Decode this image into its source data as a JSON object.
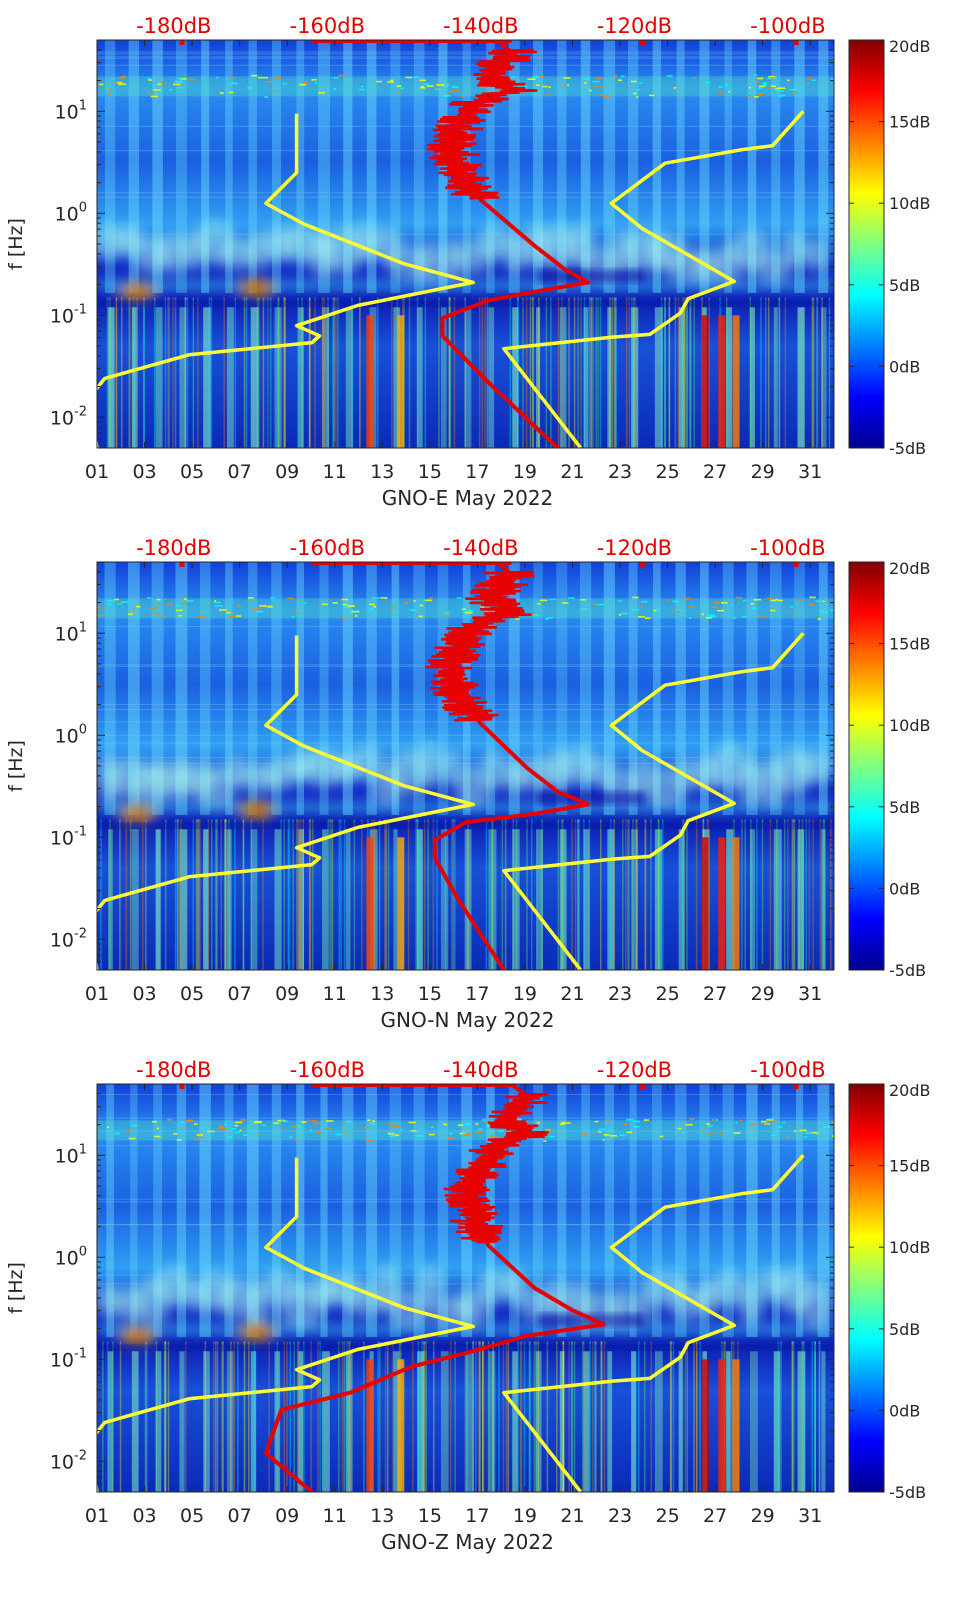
{
  "colors": {
    "spectrogram_low": "#00008f",
    "spectrogram_high": "#800000",
    "noise_model_lines": "#ffff33",
    "psd_median_line": "#e60000",
    "top_axis_text": "#e00000"
  },
  "chart_data": [
    {
      "type": "heatmap",
      "title": "",
      "xlabel": "GNO-E May 2022",
      "ylabel": "f [Hz]",
      "x_tick_labels": [
        "01",
        "03",
        "05",
        "07",
        "09",
        "11",
        "13",
        "15",
        "17",
        "19",
        "21",
        "23",
        "25",
        "27",
        "29",
        "31"
      ],
      "x_range_days": [
        1,
        32
      ],
      "y_scale": "log",
      "y_range_hz": [
        0.005,
        50
      ],
      "y_tick_labels": [
        "10^-2",
        "10^-1",
        "10^0",
        "10^1"
      ],
      "top_tick_labels": [
        "-180dB",
        "-160dB",
        "-140dB",
        "-120dB",
        "-100dB"
      ],
      "top_range_db": [
        -190,
        -94
      ],
      "colorbar": {
        "ticks": [
          "-5dB",
          "0dB",
          "5dB",
          "10dB",
          "15dB",
          "20dB"
        ],
        "range_db": [
          -5,
          20
        ],
        "colormap": "jet"
      },
      "lines": [
        {
          "color": "yellow",
          "points_db_hz": [
            [
              -190,
              0.005
            ],
            [
              -191,
              0.0155
            ],
            [
              -189,
              0.024
            ],
            [
              -178,
              0.041
            ],
            [
              -162,
              0.054
            ],
            [
              -161,
              0.063
            ],
            [
              -164,
              0.079
            ],
            [
              -156,
              0.125
            ],
            [
              -141,
              0.21
            ],
            [
              -150,
              0.32
            ],
            [
              -163,
              0.78
            ],
            [
              -168,
              1.25
            ],
            [
              -164,
              2.5
            ],
            [
              -164,
              9.5
            ]
          ]
        },
        {
          "color": "yellow",
          "points_db_hz": [
            [
              -127,
              0.005
            ],
            [
              -137,
              0.047
            ],
            [
              -123,
              0.061
            ],
            [
              -118,
              0.065
            ],
            [
              -114,
              0.105
            ],
            [
              -113,
              0.145
            ],
            [
              -107,
              0.215
            ],
            [
              -119,
              0.71
            ],
            [
              -123,
              1.25
            ],
            [
              -116,
              3.1
            ],
            [
              -106,
              4.2
            ],
            [
              -102,
              4.6
            ],
            [
              -98,
              10
            ]
          ]
        },
        {
          "color": "red",
          "points_db_hz": [
            [
              -130,
              0.005
            ],
            [
              -139,
              0.022
            ],
            [
              -145,
              0.063
            ],
            [
              -145,
              0.094
            ],
            [
              -139,
              0.14
            ],
            [
              -133,
              0.17
            ],
            [
              -126,
              0.21
            ],
            [
              -129,
              0.28
            ],
            [
              -133,
              0.48
            ],
            [
              -140,
              1.35
            ],
            [
              -143,
              2.6
            ],
            [
              -144,
              5
            ],
            [
              -141,
              12
            ],
            [
              -136,
              16
            ],
            [
              -139,
              22
            ],
            [
              -136,
              38
            ],
            [
              -138,
              50
            ]
          ]
        }
      ]
    },
    {
      "type": "heatmap",
      "title": "",
      "xlabel": "GNO-N May 2022",
      "ylabel": "f [Hz]",
      "x_tick_labels": [
        "01",
        "03",
        "05",
        "07",
        "09",
        "11",
        "13",
        "15",
        "17",
        "19",
        "21",
        "23",
        "25",
        "27",
        "29",
        "31"
      ],
      "x_range_days": [
        1,
        32
      ],
      "y_scale": "log",
      "y_range_hz": [
        0.005,
        50
      ],
      "y_tick_labels": [
        "10^-2",
        "10^-1",
        "10^0",
        "10^1"
      ],
      "top_tick_labels": [
        "-180dB",
        "-160dB",
        "-140dB",
        "-120dB",
        "-100dB"
      ],
      "top_range_db": [
        -190,
        -94
      ],
      "colorbar": {
        "ticks": [
          "-5dB",
          "0dB",
          "5dB",
          "10dB",
          "15dB",
          "20dB"
        ],
        "range_db": [
          -5,
          20
        ],
        "colormap": "jet"
      },
      "lines": [
        {
          "color": "yellow",
          "points_db_hz": [
            [
              -190,
              0.005
            ],
            [
              -191,
              0.0155
            ],
            [
              -189,
              0.024
            ],
            [
              -178,
              0.041
            ],
            [
              -162,
              0.054
            ],
            [
              -161,
              0.063
            ],
            [
              -164,
              0.079
            ],
            [
              -156,
              0.125
            ],
            [
              -141,
              0.21
            ],
            [
              -150,
              0.32
            ],
            [
              -163,
              0.78
            ],
            [
              -168,
              1.25
            ],
            [
              -164,
              2.5
            ],
            [
              -164,
              9.5
            ]
          ]
        },
        {
          "color": "yellow",
          "points_db_hz": [
            [
              -127,
              0.005
            ],
            [
              -137,
              0.047
            ],
            [
              -123,
              0.061
            ],
            [
              -118,
              0.065
            ],
            [
              -114,
              0.105
            ],
            [
              -113,
              0.145
            ],
            [
              -107,
              0.215
            ],
            [
              -119,
              0.71
            ],
            [
              -123,
              1.25
            ],
            [
              -116,
              3.1
            ],
            [
              -106,
              4.2
            ],
            [
              -102,
              4.6
            ],
            [
              -98,
              10
            ]
          ]
        },
        {
          "color": "red",
          "points_db_hz": [
            [
              -137,
              0.005
            ],
            [
              -143,
              0.025
            ],
            [
              -146,
              0.063
            ],
            [
              -146,
              0.094
            ],
            [
              -142,
              0.14
            ],
            [
              -133,
              0.17
            ],
            [
              -126,
              0.21
            ],
            [
              -130,
              0.28
            ],
            [
              -134,
              0.48
            ],
            [
              -140,
              1.3
            ],
            [
              -143,
              2.6
            ],
            [
              -144,
              5
            ],
            [
              -141,
              12
            ],
            [
              -136,
              16
            ],
            [
              -139,
              22
            ],
            [
              -136,
              38
            ],
            [
              -138,
              50
            ]
          ]
        }
      ]
    },
    {
      "type": "heatmap",
      "title": "",
      "xlabel": "GNO-Z May 2022",
      "ylabel": "f [Hz]",
      "x_tick_labels": [
        "01",
        "03",
        "05",
        "07",
        "09",
        "11",
        "13",
        "15",
        "17",
        "19",
        "21",
        "23",
        "25",
        "27",
        "29",
        "31"
      ],
      "x_range_days": [
        1,
        32
      ],
      "y_scale": "log",
      "y_range_hz": [
        0.005,
        50
      ],
      "y_tick_labels": [
        "10^-2",
        "10^-1",
        "10^0",
        "10^1"
      ],
      "top_tick_labels": [
        "-180dB",
        "-160dB",
        "-140dB",
        "-120dB",
        "-100dB"
      ],
      "top_range_db": [
        -190,
        -94
      ],
      "colorbar": {
        "ticks": [
          "-5dB",
          "0dB",
          "5dB",
          "10dB",
          "15dB",
          "20dB"
        ],
        "range_db": [
          -5,
          20
        ],
        "colormap": "jet"
      },
      "lines": [
        {
          "color": "yellow",
          "points_db_hz": [
            [
              -190,
              0.005
            ],
            [
              -191,
              0.0155
            ],
            [
              -189,
              0.024
            ],
            [
              -178,
              0.041
            ],
            [
              -162,
              0.054
            ],
            [
              -161,
              0.063
            ],
            [
              -164,
              0.079
            ],
            [
              -156,
              0.125
            ],
            [
              -141,
              0.21
            ],
            [
              -150,
              0.32
            ],
            [
              -163,
              0.78
            ],
            [
              -168,
              1.25
            ],
            [
              -164,
              2.5
            ],
            [
              -164,
              9.5
            ]
          ]
        },
        {
          "color": "yellow",
          "points_db_hz": [
            [
              -127,
              0.005
            ],
            [
              -137,
              0.047
            ],
            [
              -123,
              0.061
            ],
            [
              -118,
              0.065
            ],
            [
              -114,
              0.105
            ],
            [
              -113,
              0.145
            ],
            [
              -107,
              0.215
            ],
            [
              -119,
              0.71
            ],
            [
              -123,
              1.25
            ],
            [
              -116,
              3.1
            ],
            [
              -106,
              4.2
            ],
            [
              -102,
              4.6
            ],
            [
              -98,
              10
            ]
          ]
        },
        {
          "color": "red",
          "points_db_hz": [
            [
              -162,
              0.005
            ],
            [
              -168,
              0.012
            ],
            [
              -166,
              0.032
            ],
            [
              -157,
              0.047
            ],
            [
              -149,
              0.085
            ],
            [
              -141,
              0.12
            ],
            [
              -134,
              0.17
            ],
            [
              -124,
              0.22
            ],
            [
              -128,
              0.3
            ],
            [
              -133,
              0.5
            ],
            [
              -139,
              1.3
            ],
            [
              -141,
              2.6
            ],
            [
              -142,
              5
            ],
            [
              -138,
              12
            ],
            [
              -134,
              16
            ],
            [
              -137,
              22
            ],
            [
              -134,
              38
            ],
            [
              -136,
              50
            ]
          ]
        }
      ]
    }
  ]
}
